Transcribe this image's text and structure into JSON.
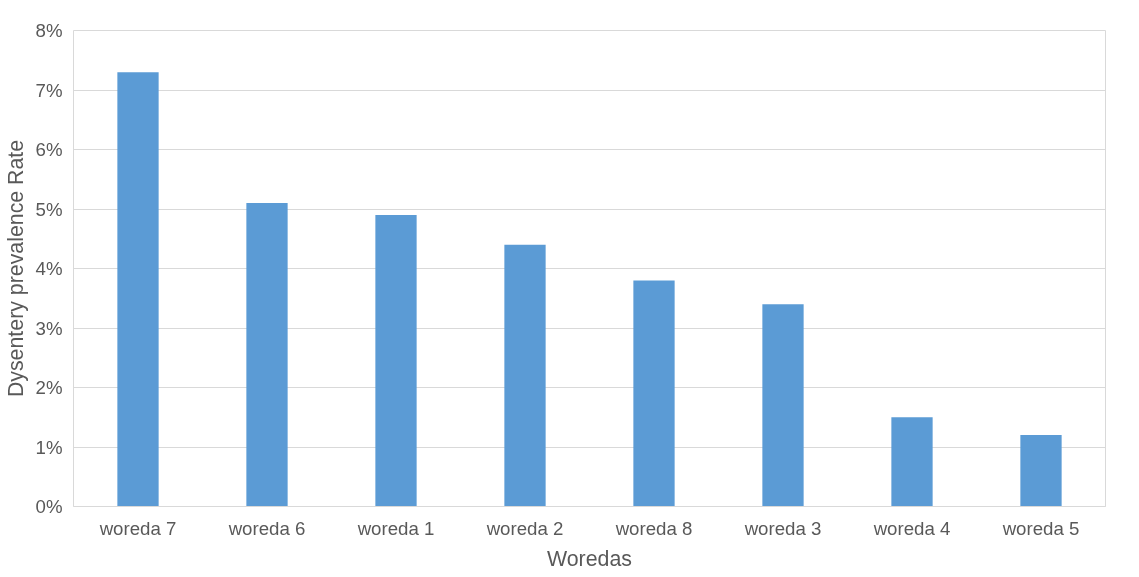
{
  "chart_data": {
    "type": "bar",
    "xlabel": "Woredas",
    "ylabel": "Dysentery prevalence Rate",
    "categories": [
      "woreda 7",
      "woreda 6",
      "woreda 1",
      "woreda 2",
      "woreda 8",
      "woreda 3",
      "woreda 4",
      "woreda 5"
    ],
    "values": [
      7.3,
      5.1,
      4.9,
      4.4,
      3.8,
      3.4,
      1.5,
      1.2
    ],
    "color": "#5b9bd5",
    "ylim": [
      0,
      8
    ],
    "yticks": [
      {
        "value": 0,
        "label": "0%"
      },
      {
        "value": 1,
        "label": "1%"
      },
      {
        "value": 2,
        "label": "2%"
      },
      {
        "value": 3,
        "label": "3%"
      },
      {
        "value": 4,
        "label": "4%"
      },
      {
        "value": 5,
        "label": "5%"
      },
      {
        "value": 6,
        "label": "6%"
      },
      {
        "value": 7,
        "label": "7%"
      },
      {
        "value": 8,
        "label": "8%"
      }
    ],
    "grid": "y"
  }
}
